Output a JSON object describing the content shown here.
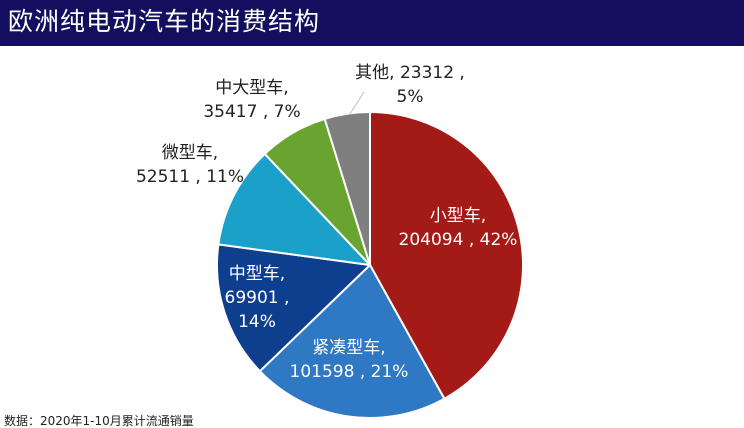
{
  "chart_data": {
    "type": "pie",
    "title": "欧洲纯电动汽车的消费结构",
    "slices": [
      {
        "name": "小型车",
        "value": 204094,
        "percent_label": "42%",
        "color": "#a31a16",
        "label_lines": [
          "小型车,",
          "204094 , 42%"
        ],
        "label_color": "#ffffff",
        "label_anchor": "middle"
      },
      {
        "name": "紧凑型车",
        "value": 101598,
        "percent_label": "21%",
        "color": "#2f78c4",
        "label_lines": [
          "紧凑型车,",
          "101598 , 21%"
        ],
        "label_color": "#ffffff",
        "label_anchor": "middle"
      },
      {
        "name": "中型车",
        "value": 69901,
        "percent_label": "14%",
        "color": "#0e3f8f",
        "label_lines": [
          "中型车,",
          "69901 ,",
          "14%"
        ],
        "label_color": "#ffffff",
        "label_anchor": "middle"
      },
      {
        "name": "微型车",
        "value": 52511,
        "percent_label": "11%",
        "color": "#1aa0c9",
        "label_lines": [
          "微型车,",
          "52511 , 11%"
        ],
        "label_color": "#222222",
        "label_anchor": "middle"
      },
      {
        "name": "中大型车",
        "value": 35417,
        "percent_label": "7%",
        "color": "#6aa430",
        "label_lines": [
          "中大型车,",
          "35417 , 7%"
        ],
        "label_color": "#222222",
        "label_anchor": "middle"
      },
      {
        "name": "其他",
        "value": 23312,
        "percent_label": "5%",
        "color": "#7f7f7f",
        "label_lines": [
          "其他, 23312 ,",
          "5%"
        ],
        "label_color": "#222222",
        "label_anchor": "middle"
      }
    ]
  },
  "footer": {
    "source": "数据：2020年1-10月累计流通销量"
  }
}
